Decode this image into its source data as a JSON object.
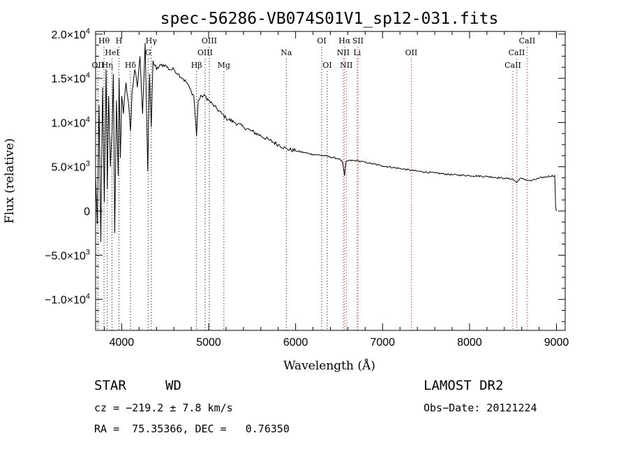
{
  "chart_data": {
    "type": "line",
    "title": "spec-56286-VB074S01V1_sp12-031.fits",
    "xlabel": "Wavelength (Å)",
    "ylabel": "Flux (relative)",
    "xlim": [
      3700,
      9100
    ],
    "ylim": [
      -13500,
      20300
    ],
    "x_ticks": [
      4000,
      5000,
      6000,
      7000,
      8000,
      9000
    ],
    "x_tick_labels": [
      "4000",
      "5000",
      "6000",
      "7000",
      "8000",
      "9000"
    ],
    "y_ticks": [
      {
        "value": 20000,
        "mant": "2.0",
        "exp": "4"
      },
      {
        "value": 15000,
        "mant": "1.5",
        "exp": "4"
      },
      {
        "value": 10000,
        "mant": "1.0",
        "exp": "4"
      },
      {
        "value": 5000,
        "mant": "5.0",
        "exp": "3"
      },
      {
        "value": 0,
        "mant": "0",
        "exp": ""
      },
      {
        "value": -5000,
        "mant": "−5.0",
        "exp": "3"
      },
      {
        "value": -10000,
        "mant": "−1.0",
        "exp": "4"
      }
    ],
    "grid": false,
    "series": [
      {
        "color": "#000000",
        "x": [
          3700,
          3720,
          3740,
          3760,
          3780,
          3800,
          3820,
          3835,
          3850,
          3870,
          3889,
          3905,
          3920,
          3940,
          3960,
          3970,
          3985,
          4000,
          4020,
          4050,
          4080,
          4101,
          4120,
          4150,
          4180,
          4210,
          4240,
          4270,
          4300,
          4320,
          4340,
          4360,
          4400,
          4450,
          4500,
          4550,
          4600,
          4650,
          4700,
          4750,
          4800,
          4830,
          4861,
          4880,
          4920,
          4960,
          5000,
          5050,
          5100,
          5150,
          5200,
          5300,
          5400,
          5500,
          5600,
          5700,
          5800,
          5900,
          6000,
          6100,
          6200,
          6300,
          6400,
          6500,
          6540,
          6563,
          6580,
          6620,
          6700,
          6800,
          6900,
          7000,
          7200,
          7400,
          7600,
          7800,
          8000,
          8200,
          8400,
          8500,
          8542,
          8580,
          8662,
          8700,
          8800,
          8900,
          8980,
          8990,
          9000
        ],
        "y": [
          4000,
          -1500,
          12000,
          -3500,
          14000,
          1000,
          16000,
          2500,
          13000,
          5000,
          9000,
          15500,
          -2500,
          12500,
          4000,
          15000,
          6000,
          13000,
          11000,
          14500,
          12000,
          9000,
          13500,
          16000,
          14000,
          17500,
          11000,
          19000,
          4500,
          15500,
          9500,
          17000,
          16000,
          16500,
          16500,
          16000,
          16000,
          15500,
          15000,
          14500,
          13500,
          13000,
          8500,
          12500,
          13000,
          13000,
          12500,
          12000,
          11500,
          11000,
          10500,
          10000,
          9500,
          9000,
          8500,
          8000,
          7500,
          7000,
          6800,
          6600,
          6400,
          6300,
          6100,
          5900,
          5500,
          4000,
          5600,
          5700,
          5700,
          5500,
          5300,
          5100,
          4800,
          4500,
          4300,
          4100,
          4000,
          3900,
          3700,
          3600,
          3200,
          3700,
          3500,
          3400,
          3700,
          3900,
          4000,
          500,
          0
        ]
      }
    ],
    "lines": [
      {
        "name": "Hθ",
        "x": 3797,
        "row": 1,
        "color": "#000000"
      },
      {
        "name": "H",
        "x": 3968,
        "row": 1,
        "color": "#000000"
      },
      {
        "name": "Hγ",
        "x": 4340,
        "row": 1,
        "color": "#000000"
      },
      {
        "name": "OIII",
        "x": 5007,
        "row": 1,
        "color": "#000000"
      },
      {
        "name": "OI",
        "x": 6300,
        "row": 1,
        "color": "#000000"
      },
      {
        "name": "Hα",
        "x": 6563,
        "row": 1,
        "color": "#dd0000"
      },
      {
        "name": "SII",
        "x": 6717,
        "row": 1,
        "color": "#dd0000"
      },
      {
        "name": "CaII",
        "x": 8662,
        "row": 1,
        "color": "#dd0000"
      },
      {
        "name": "HeI",
        "x": 3889,
        "row": 2,
        "color": "#000000"
      },
      {
        "name": "G",
        "x": 4304,
        "row": 2,
        "color": "#000000"
      },
      {
        "name": "OIII",
        "x": 4959,
        "row": 2,
        "color": "#000000"
      },
      {
        "name": "Na",
        "x": 5893,
        "row": 2,
        "color": "#000000"
      },
      {
        "name": "NII",
        "x": 6548,
        "row": 2,
        "color": "#dd0000"
      },
      {
        "name": "Li",
        "x": 6708,
        "row": 2,
        "color": "#dd0000"
      },
      {
        "name": "OII",
        "x": 7330,
        "row": 2,
        "color": "#dd0000"
      },
      {
        "name": "CaII",
        "x": 8542,
        "row": 2,
        "color": "#dd0000"
      },
      {
        "name": "OII",
        "x": 3727,
        "row": 3,
        "color": "#000000"
      },
      {
        "name": "Hη",
        "x": 3835,
        "row": 3,
        "color": "#000000"
      },
      {
        "name": "Hδ",
        "x": 4101,
        "row": 3,
        "color": "#000000"
      },
      {
        "name": "Hβ",
        "x": 4861,
        "row": 3,
        "color": "#000000"
      },
      {
        "name": "Mg",
        "x": 5175,
        "row": 3,
        "color": "#000000"
      },
      {
        "name": "OI",
        "x": 6364,
        "row": 3,
        "color": "#000000"
      },
      {
        "name": "NII",
        "x": 6583,
        "row": 3,
        "color": "#dd0000"
      },
      {
        "name": "CaII",
        "x": 8498,
        "row": 3,
        "color": "#dd0000"
      }
    ]
  },
  "info": {
    "class_label": "STAR",
    "subclass": "WD",
    "survey": "LAMOST DR2",
    "cz": "cz = −219.2 ± 7.8 km/s",
    "obs_date": "Obs−Date: 20121224",
    "coords": "RA =  75.35366, DEC =   0.76350"
  }
}
